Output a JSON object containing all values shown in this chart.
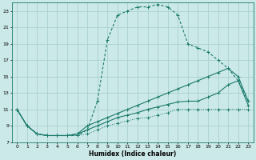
{
  "xlabel": "Humidex (Indice chaleur)",
  "bg_color": "#cce9e9",
  "grid_color": "#aacfcf",
  "line_color": "#1a7a6a",
  "xlim": [
    -0.5,
    23.5
  ],
  "ylim": [
    7,
    24
  ],
  "xticks": [
    0,
    1,
    2,
    3,
    4,
    5,
    6,
    7,
    8,
    9,
    10,
    11,
    12,
    13,
    14,
    15,
    16,
    17,
    18,
    19,
    20,
    21,
    22,
    23
  ],
  "yticks": [
    7,
    9,
    11,
    13,
    15,
    17,
    19,
    21,
    23
  ],
  "line1_x": [
    0,
    1,
    2,
    3,
    4,
    5,
    6,
    7,
    8,
    9,
    10,
    11,
    12,
    13,
    14,
    15,
    16,
    17,
    18,
    19,
    20,
    21,
    22,
    23
  ],
  "line1_y": [
    11,
    9,
    8,
    7.8,
    7.8,
    7.8,
    7.8,
    8.5,
    12,
    19.5,
    22.5,
    23,
    23.5,
    23.5,
    23.8,
    23.5,
    22.5,
    19,
    18.5,
    18,
    17,
    16,
    14.5,
    12
  ],
  "line2_x": [
    0,
    1,
    2,
    3,
    4,
    5,
    6,
    7,
    8,
    9,
    10,
    11,
    12,
    13,
    14,
    15,
    16,
    17,
    18,
    19,
    20,
    21,
    22,
    23
  ],
  "line2_y": [
    11,
    9,
    8,
    7.8,
    7.8,
    7.8,
    8,
    9,
    9.5,
    10,
    10.5,
    11,
    11.5,
    12,
    12.5,
    13,
    13.5,
    14,
    14.5,
    15,
    15.5,
    16,
    15,
    12
  ],
  "line3_x": [
    0,
    1,
    2,
    3,
    4,
    5,
    6,
    7,
    8,
    9,
    10,
    11,
    12,
    13,
    14,
    15,
    16,
    17,
    18,
    19,
    20,
    21,
    22,
    23
  ],
  "line3_y": [
    11,
    9,
    8,
    7.8,
    7.8,
    7.8,
    8,
    8.5,
    9,
    9.5,
    10,
    10.3,
    10.6,
    11,
    11.3,
    11.6,
    11.9,
    12,
    12,
    12.5,
    13,
    14,
    14.5,
    11.5
  ],
  "line4_x": [
    0,
    1,
    2,
    3,
    4,
    5,
    6,
    7,
    8,
    9,
    10,
    11,
    12,
    13,
    14,
    15,
    16,
    17,
    18,
    19,
    20,
    21,
    22,
    23
  ],
  "line4_y": [
    11,
    9,
    8,
    7.8,
    7.8,
    7.8,
    7.8,
    8,
    8.5,
    9,
    9.3,
    9.6,
    9.9,
    10,
    10.3,
    10.6,
    11,
    11,
    11,
    11,
    11,
    11,
    11,
    11
  ]
}
